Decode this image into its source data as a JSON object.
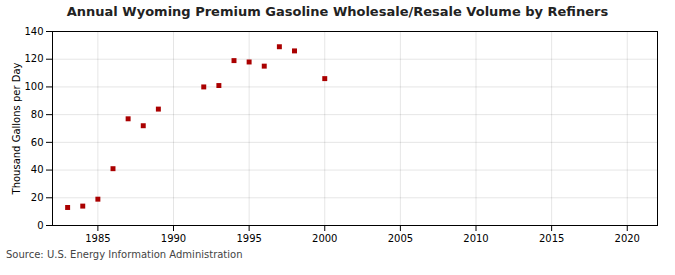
{
  "chart_data": {
    "type": "scatter",
    "title": "Annual Wyoming Premium Gasoline Wholesale/Resale Volume by Refiners",
    "ylabel": "Thousand Gallons per Day",
    "source": "Source: U.S. Energy Information Administration",
    "x": [
      1983,
      1984,
      1985,
      1986,
      1987,
      1988,
      1989,
      1992,
      1993,
      1994,
      1995,
      1996,
      1997,
      1998,
      2000
    ],
    "values": [
      13,
      14,
      19,
      41,
      77,
      72,
      84,
      100,
      101,
      119,
      118,
      115,
      129,
      126,
      106
    ],
    "color": "#aa0000",
    "marker": "square",
    "xlim": [
      1982,
      2022
    ],
    "ylim": [
      0,
      140
    ],
    "xticks": [
      1985,
      1990,
      1995,
      2000,
      2005,
      2010,
      2015,
      2020
    ],
    "yticks": [
      0,
      20,
      40,
      60,
      80,
      100,
      120,
      140
    ],
    "grid": true
  }
}
